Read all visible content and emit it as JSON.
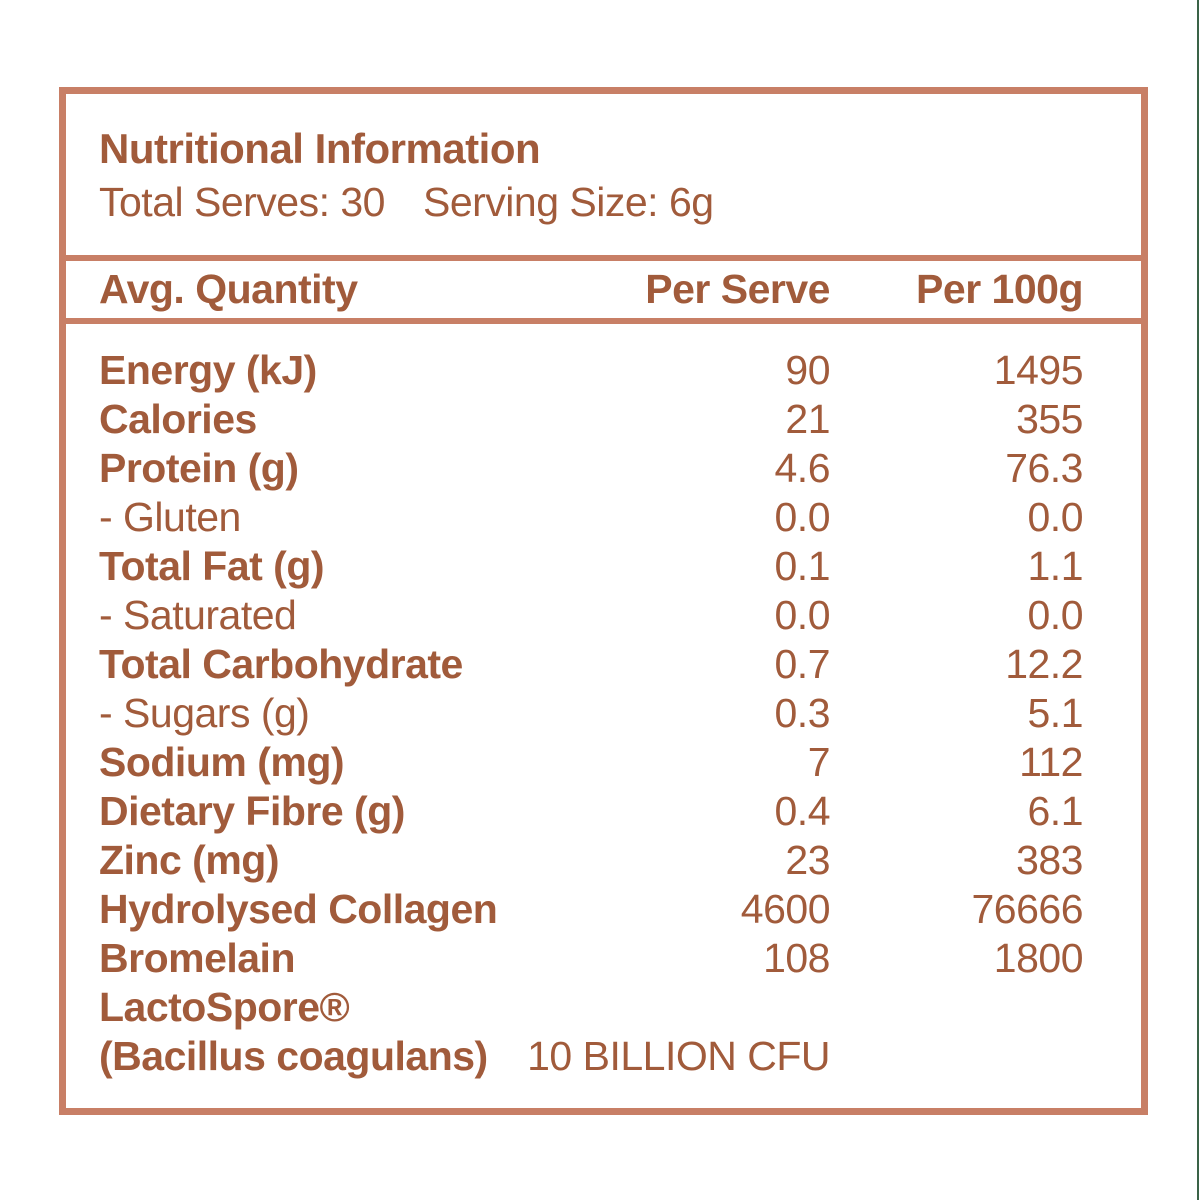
{
  "colors": {
    "text": "#A15B3B",
    "frame": "#C87F66",
    "edge_line": "#3A6347",
    "background": "#FFFFFF"
  },
  "panel": {
    "title": "Nutritional Information",
    "total_serves": "Total Serves: 30",
    "serving_size": "Serving Size: 6g"
  },
  "table": {
    "headers": {
      "quantity": "Avg. Quantity",
      "per_serve": "Per Serve",
      "per_100g": "Per 100g"
    },
    "rows": [
      {
        "label": "Energy (kJ)",
        "per_serve": "90",
        "per_100g": "1495",
        "style": "main"
      },
      {
        "label": "Calories",
        "per_serve": "21",
        "per_100g": "355",
        "style": "main"
      },
      {
        "label": "Protein (g)",
        "per_serve": "4.6",
        "per_100g": "76.3",
        "style": "main"
      },
      {
        "label": "- Gluten",
        "per_serve": "0.0",
        "per_100g": "0.0",
        "style": "sub"
      },
      {
        "label": "Total Fat (g)",
        "per_serve": "0.1",
        "per_100g": "1.1",
        "style": "main"
      },
      {
        "label": "- Saturated",
        "per_serve": "0.0",
        "per_100g": "0.0",
        "style": "sub"
      },
      {
        "label": "Total Carbohydrate",
        "per_serve": "0.7",
        "per_100g": "12.2",
        "style": "main"
      },
      {
        "label": "- Sugars (g)",
        "per_serve": "0.3",
        "per_100g": "5.1",
        "style": "sub"
      },
      {
        "label": "Sodium (mg)",
        "per_serve": "7",
        "per_100g": "112",
        "style": "main"
      },
      {
        "label": "Dietary Fibre (g)",
        "per_serve": "0.4",
        "per_100g": "6.1",
        "style": "main"
      },
      {
        "label": "Zinc (mg)",
        "per_serve": "23",
        "per_100g": "383",
        "style": "main"
      },
      {
        "label": "Hydrolysed Collagen",
        "per_serve": "4600",
        "per_100g": "76666",
        "style": "main"
      },
      {
        "label": "Bromelain",
        "per_serve": "108",
        "per_100g": "1800",
        "style": "main"
      },
      {
        "label": "LactoSpore®",
        "per_serve": "",
        "per_100g": "",
        "style": "main"
      },
      {
        "label": "(Bacillus coagulans)",
        "per_serve": "10 BILLION CFU",
        "per_100g": "",
        "style": "main",
        "wide_value": true
      }
    ]
  }
}
